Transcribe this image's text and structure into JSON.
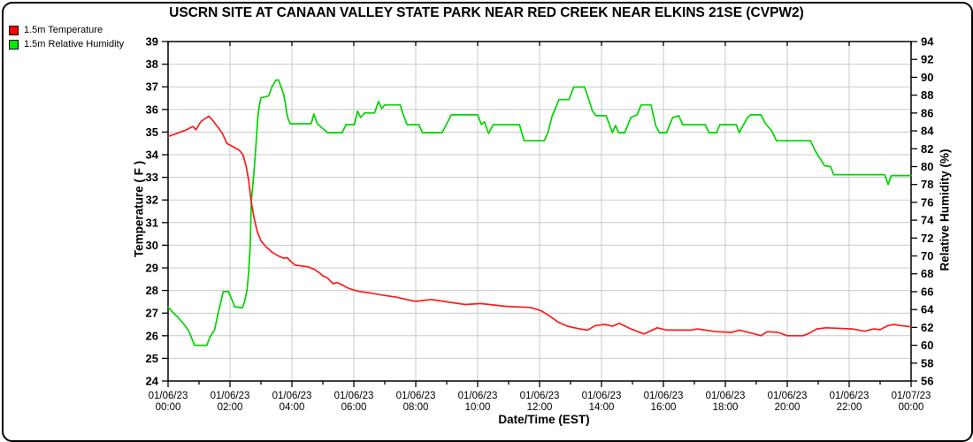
{
  "title": "USCRN SITE AT CANAAN VALLEY STATE PARK NEAR RED CREEK NEAR ELKINS 21SE (CVPW2)",
  "legend": {
    "temperature": {
      "label": "1.5m Temperature",
      "color": "#ff0000"
    },
    "humidity": {
      "label": "1.5m Relative Humidity",
      "color": "#00ee00"
    }
  },
  "axes": {
    "x_title": "Date/Time (EST)",
    "y_left_title": "Temperature ( F )",
    "y_right_title": "Relative Humidity (%)"
  },
  "chart_data": {
    "type": "line",
    "title": "USCRN SITE AT CANAAN VALLEY STATE PARK NEAR RED CREEK NEAR ELKINS 21SE (CVPW2)",
    "xlabel": "Date/Time (EST)",
    "ylabel_left": "Temperature ( F )",
    "ylabel_right": "Relative Humidity (%)",
    "grid": true,
    "grid_color": "#c9c9c9",
    "x_range_hours": [
      0,
      24
    ],
    "x_major_tick_hours": [
      0,
      2,
      4,
      6,
      8,
      10,
      12,
      14,
      16,
      18,
      20,
      22,
      24
    ],
    "x_minor_tick_hours": [
      1,
      3,
      5,
      7,
      9,
      11,
      13,
      15,
      17,
      19,
      21,
      23
    ],
    "x_tick_labels": [
      {
        "date": "01/06/23",
        "time": "00:00"
      },
      {
        "date": "01/06/23",
        "time": "02:00"
      },
      {
        "date": "01/06/23",
        "time": "04:00"
      },
      {
        "date": "01/06/23",
        "time": "06:00"
      },
      {
        "date": "01/06/23",
        "time": "08:00"
      },
      {
        "date": "01/06/23",
        "time": "10:00"
      },
      {
        "date": "01/06/23",
        "time": "12:00"
      },
      {
        "date": "01/06/23",
        "time": "14:00"
      },
      {
        "date": "01/06/23",
        "time": "16:00"
      },
      {
        "date": "01/06/23",
        "time": "18:00"
      },
      {
        "date": "01/06/23",
        "time": "20:00"
      },
      {
        "date": "01/06/23",
        "time": "22:00"
      },
      {
        "date": "01/07/23",
        "time": "00:00"
      }
    ],
    "y_left": {
      "min": 24,
      "max": 39,
      "tick_step": 1
    },
    "y_right": {
      "min": 56,
      "max": 94,
      "tick_step": 2
    },
    "series": [
      {
        "name": "1.5m Relative Humidity",
        "axis": "right",
        "color": "#00d400",
        "units": "%",
        "points": [
          [
            0,
            64.3
          ],
          [
            0.15,
            63.7
          ],
          [
            0.3,
            63.2
          ],
          [
            0.5,
            62.4
          ],
          [
            0.65,
            61.7
          ],
          [
            0.75,
            60.9
          ],
          [
            0.85,
            60.0
          ],
          [
            1.25,
            60.0
          ],
          [
            1.35,
            60.9
          ],
          [
            1.5,
            61.7
          ],
          [
            1.6,
            63.3
          ],
          [
            1.7,
            64.8
          ],
          [
            1.78,
            66.0
          ],
          [
            1.95,
            66.0
          ],
          [
            2.05,
            65.2
          ],
          [
            2.15,
            64.3
          ],
          [
            2.4,
            64.2
          ],
          [
            2.48,
            65.0
          ],
          [
            2.55,
            66.2
          ],
          [
            2.6,
            68.0
          ],
          [
            2.65,
            71.0
          ],
          [
            2.69,
            76.1
          ],
          [
            2.75,
            78.5
          ],
          [
            2.8,
            80.5
          ],
          [
            2.85,
            83.0
          ],
          [
            2.9,
            85.6
          ],
          [
            2.95,
            86.9
          ],
          [
            3.0,
            87.7
          ],
          [
            3.25,
            87.9
          ],
          [
            3.35,
            88.9
          ],
          [
            3.49,
            89.7
          ],
          [
            3.57,
            89.7
          ],
          [
            3.65,
            88.9
          ],
          [
            3.73,
            88.1
          ],
          [
            3.78,
            87.3
          ],
          [
            3.83,
            86.1
          ],
          [
            3.88,
            85.3
          ],
          [
            3.95,
            84.8
          ],
          [
            4.62,
            84.8
          ],
          [
            4.71,
            85.9
          ],
          [
            4.82,
            84.8
          ],
          [
            5.15,
            83.8
          ],
          [
            5.62,
            83.8
          ],
          [
            5.75,
            84.7
          ],
          [
            6.02,
            84.7
          ],
          [
            6.12,
            86.2
          ],
          [
            6.22,
            85.5
          ],
          [
            6.35,
            86.0
          ],
          [
            6.67,
            86.0
          ],
          [
            6.8,
            87.3
          ],
          [
            6.9,
            86.5
          ],
          [
            7.0,
            86.9
          ],
          [
            7.5,
            86.9
          ],
          [
            7.6,
            85.8
          ],
          [
            7.72,
            84.7
          ],
          [
            8.1,
            84.7
          ],
          [
            8.22,
            83.8
          ],
          [
            8.85,
            83.8
          ],
          [
            9.0,
            84.8
          ],
          [
            9.15,
            85.8
          ],
          [
            10.0,
            85.8
          ],
          [
            10.12,
            84.7
          ],
          [
            10.22,
            85.0
          ],
          [
            10.35,
            83.7
          ],
          [
            10.5,
            84.7
          ],
          [
            11.35,
            84.7
          ],
          [
            11.5,
            82.9
          ],
          [
            12.15,
            82.9
          ],
          [
            12.27,
            83.8
          ],
          [
            12.4,
            85.6
          ],
          [
            12.63,
            87.5
          ],
          [
            12.95,
            87.5
          ],
          [
            13.1,
            88.9
          ],
          [
            13.45,
            88.9
          ],
          [
            13.57,
            87.7
          ],
          [
            13.7,
            86.3
          ],
          [
            13.82,
            85.7
          ],
          [
            14.15,
            85.7
          ],
          [
            14.35,
            83.8
          ],
          [
            14.45,
            84.6
          ],
          [
            14.55,
            83.8
          ],
          [
            14.75,
            83.8
          ],
          [
            14.95,
            85.5
          ],
          [
            15.15,
            85.8
          ],
          [
            15.28,
            86.9
          ],
          [
            15.6,
            86.9
          ],
          [
            15.75,
            84.6
          ],
          [
            15.87,
            83.8
          ],
          [
            16.1,
            83.8
          ],
          [
            16.3,
            85.5
          ],
          [
            16.5,
            85.7
          ],
          [
            16.62,
            84.7
          ],
          [
            17.35,
            84.7
          ],
          [
            17.47,
            83.8
          ],
          [
            17.72,
            83.8
          ],
          [
            17.82,
            84.7
          ],
          [
            18.35,
            84.7
          ],
          [
            18.45,
            83.8
          ],
          [
            18.57,
            84.6
          ],
          [
            18.72,
            85.5
          ],
          [
            18.82,
            85.8
          ],
          [
            19.15,
            85.8
          ],
          [
            19.3,
            84.8
          ],
          [
            19.5,
            84.0
          ],
          [
            19.65,
            82.9
          ],
          [
            20.75,
            82.9
          ],
          [
            20.87,
            82.0
          ],
          [
            21.0,
            81.2
          ],
          [
            21.1,
            80.7
          ],
          [
            21.2,
            80.1
          ],
          [
            21.4,
            80.0
          ],
          [
            21.5,
            79.1
          ],
          [
            23.15,
            79.1
          ],
          [
            23.26,
            78.0
          ],
          [
            23.36,
            79.0
          ],
          [
            24,
            79.0
          ]
        ]
      },
      {
        "name": "1.5m Temperature",
        "axis": "left",
        "color": "#ff1a1a",
        "units": "F",
        "points": [
          [
            0,
            34.8
          ],
          [
            0.3,
            34.95
          ],
          [
            0.6,
            35.1
          ],
          [
            0.8,
            35.25
          ],
          [
            0.9,
            35.1
          ],
          [
            1.05,
            35.45
          ],
          [
            1.2,
            35.6
          ],
          [
            1.32,
            35.7
          ],
          [
            1.45,
            35.5
          ],
          [
            1.62,
            35.2
          ],
          [
            1.75,
            34.95
          ],
          [
            1.9,
            34.5
          ],
          [
            2.1,
            34.35
          ],
          [
            2.3,
            34.2
          ],
          [
            2.42,
            34.0
          ],
          [
            2.52,
            33.5
          ],
          [
            2.6,
            32.9
          ],
          [
            2.69,
            31.9
          ],
          [
            2.78,
            31.2
          ],
          [
            2.88,
            30.6
          ],
          [
            3.0,
            30.2
          ],
          [
            3.15,
            29.95
          ],
          [
            3.35,
            29.7
          ],
          [
            3.6,
            29.5
          ],
          [
            3.75,
            29.42
          ],
          [
            3.85,
            29.45
          ],
          [
            3.95,
            29.3
          ],
          [
            4.1,
            29.12
          ],
          [
            4.5,
            29.05
          ],
          [
            4.7,
            28.95
          ],
          [
            4.87,
            28.8
          ],
          [
            5.0,
            28.65
          ],
          [
            5.15,
            28.55
          ],
          [
            5.33,
            28.3
          ],
          [
            5.45,
            28.35
          ],
          [
            5.62,
            28.25
          ],
          [
            5.82,
            28.1
          ],
          [
            6.0,
            28.02
          ],
          [
            6.2,
            27.95
          ],
          [
            6.5,
            27.9
          ],
          [
            6.9,
            27.8
          ],
          [
            7.15,
            27.75
          ],
          [
            7.4,
            27.7
          ],
          [
            7.7,
            27.6
          ],
          [
            8.0,
            27.52
          ],
          [
            8.5,
            27.6
          ],
          [
            9.0,
            27.5
          ],
          [
            9.6,
            27.38
          ],
          [
            10.1,
            27.42
          ],
          [
            10.9,
            27.3
          ],
          [
            11.7,
            27.25
          ],
          [
            12.05,
            27.1
          ],
          [
            12.3,
            26.9
          ],
          [
            12.6,
            26.6
          ],
          [
            12.9,
            26.42
          ],
          [
            13.3,
            26.3
          ],
          [
            13.55,
            26.25
          ],
          [
            13.8,
            26.45
          ],
          [
            14.1,
            26.5
          ],
          [
            14.35,
            26.42
          ],
          [
            14.57,
            26.55
          ],
          [
            14.95,
            26.3
          ],
          [
            15.37,
            26.08
          ],
          [
            15.8,
            26.35
          ],
          [
            16.1,
            26.25
          ],
          [
            16.9,
            26.25
          ],
          [
            17.1,
            26.3
          ],
          [
            17.7,
            26.18
          ],
          [
            18.2,
            26.15
          ],
          [
            18.45,
            26.25
          ],
          [
            18.95,
            26.08
          ],
          [
            19.15,
            26.0
          ],
          [
            19.35,
            26.18
          ],
          [
            19.7,
            26.15
          ],
          [
            20.0,
            26.0
          ],
          [
            20.5,
            26.0
          ],
          [
            20.7,
            26.1
          ],
          [
            20.95,
            26.3
          ],
          [
            21.25,
            26.35
          ],
          [
            22.1,
            26.3
          ],
          [
            22.5,
            26.2
          ],
          [
            22.8,
            26.3
          ],
          [
            23.0,
            26.27
          ],
          [
            23.25,
            26.45
          ],
          [
            23.45,
            26.5
          ],
          [
            23.65,
            26.45
          ],
          [
            24,
            26.4
          ]
        ]
      }
    ]
  }
}
